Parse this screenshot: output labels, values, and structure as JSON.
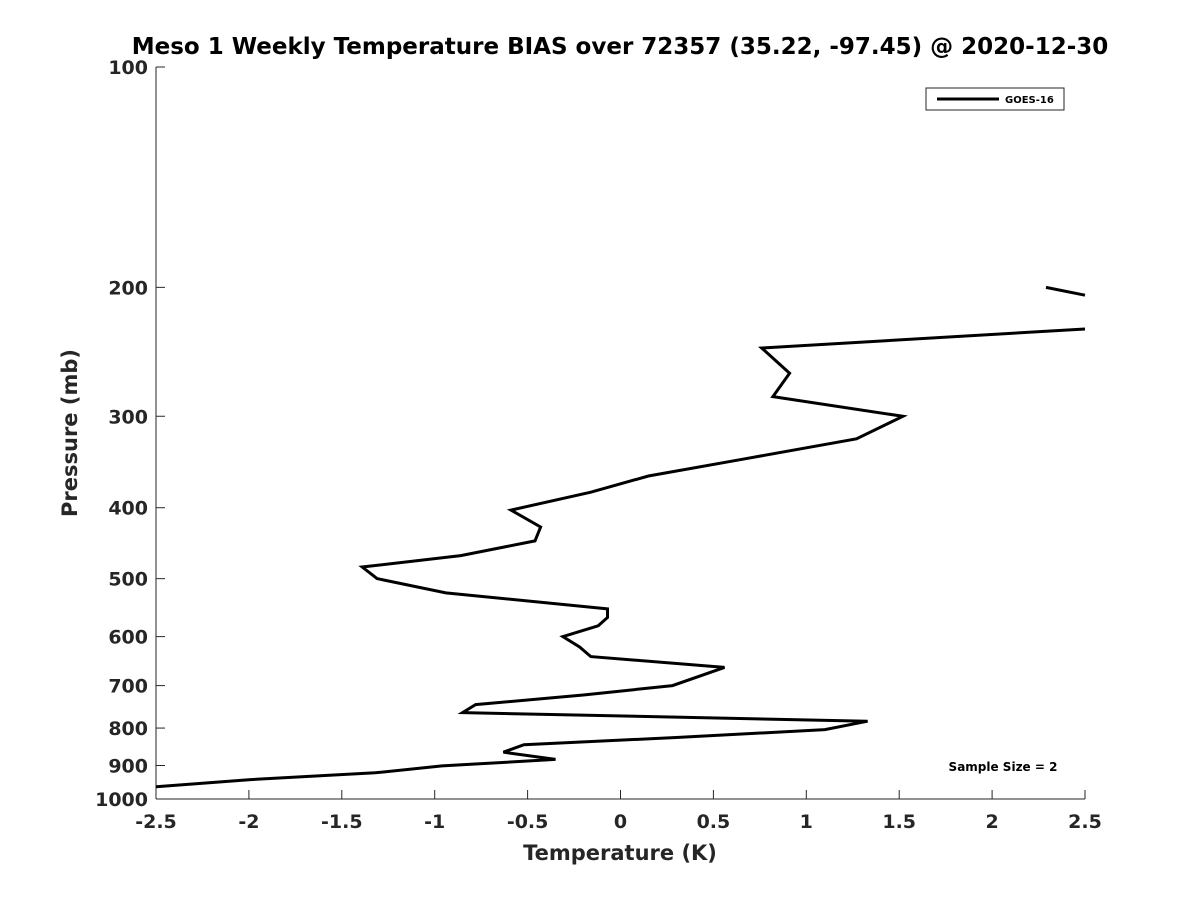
{
  "chart_data": {
    "type": "line",
    "title": "Meso 1 Weekly Temperature BIAS over 72357 (35.22, -97.45) @ 2020-12-30",
    "xlabel": "Temperature (K)",
    "ylabel": "Pressure (mb)",
    "xlim": [
      -2.5,
      2.5
    ],
    "ylim": [
      100,
      1000
    ],
    "yscale": "log",
    "y_reversed": true,
    "xticks": [
      "-2.5",
      "-2",
      "-1.5",
      "-1",
      "-0.5",
      "0",
      "0.5",
      "1",
      "1.5",
      "2",
      "2.5"
    ],
    "yticks": [
      "100",
      "200",
      "300",
      "400",
      "500",
      "600",
      "700",
      "800",
      "900",
      "1000"
    ],
    "legend": {
      "location": "top-right",
      "entries": [
        "GOES-16"
      ]
    },
    "annotation": "Sample Size = 2",
    "series": [
      {
        "name": "GOES-16",
        "segments": [
          [
            {
              "x": 2.29,
              "p": 200
            },
            {
              "x": 2.5,
              "p": 205
            }
          ],
          [
            {
              "x": 2.5,
              "p": 228
            },
            {
              "x": 0.76,
              "p": 242
            },
            {
              "x": 0.91,
              "p": 262
            },
            {
              "x": 0.82,
              "p": 282
            },
            {
              "x": 1.52,
              "p": 300
            },
            {
              "x": 1.27,
              "p": 322
            },
            {
              "x": 0.67,
              "p": 343
            },
            {
              "x": 0.15,
              "p": 362
            },
            {
              "x": -0.16,
              "p": 381
            },
            {
              "x": -0.59,
              "p": 403
            },
            {
              "x": -0.43,
              "p": 425
            },
            {
              "x": -0.46,
              "p": 444
            },
            {
              "x": -0.86,
              "p": 465
            },
            {
              "x": -1.39,
              "p": 482
            },
            {
              "x": -1.31,
              "p": 500
            },
            {
              "x": -0.94,
              "p": 523
            },
            {
              "x": -0.07,
              "p": 550
            },
            {
              "x": -0.07,
              "p": 565
            },
            {
              "x": -0.12,
              "p": 580
            },
            {
              "x": -0.31,
              "p": 600
            },
            {
              "x": -0.22,
              "p": 620
            },
            {
              "x": -0.16,
              "p": 639
            },
            {
              "x": 0.56,
              "p": 661
            },
            {
              "x": 0.28,
              "p": 700
            },
            {
              "x": -0.2,
              "p": 721
            },
            {
              "x": -0.78,
              "p": 743
            },
            {
              "x": -0.85,
              "p": 762
            },
            {
              "x": 1.33,
              "p": 783
            },
            {
              "x": 1.1,
              "p": 804
            },
            {
              "x": 0.3,
              "p": 824
            },
            {
              "x": -0.52,
              "p": 843
            },
            {
              "x": -0.63,
              "p": 863
            },
            {
              "x": -0.35,
              "p": 883
            },
            {
              "x": -0.96,
              "p": 901
            },
            {
              "x": -1.32,
              "p": 921
            },
            {
              "x": -2.0,
              "p": 941
            },
            {
              "x": -2.5,
              "p": 962
            }
          ]
        ]
      }
    ]
  }
}
